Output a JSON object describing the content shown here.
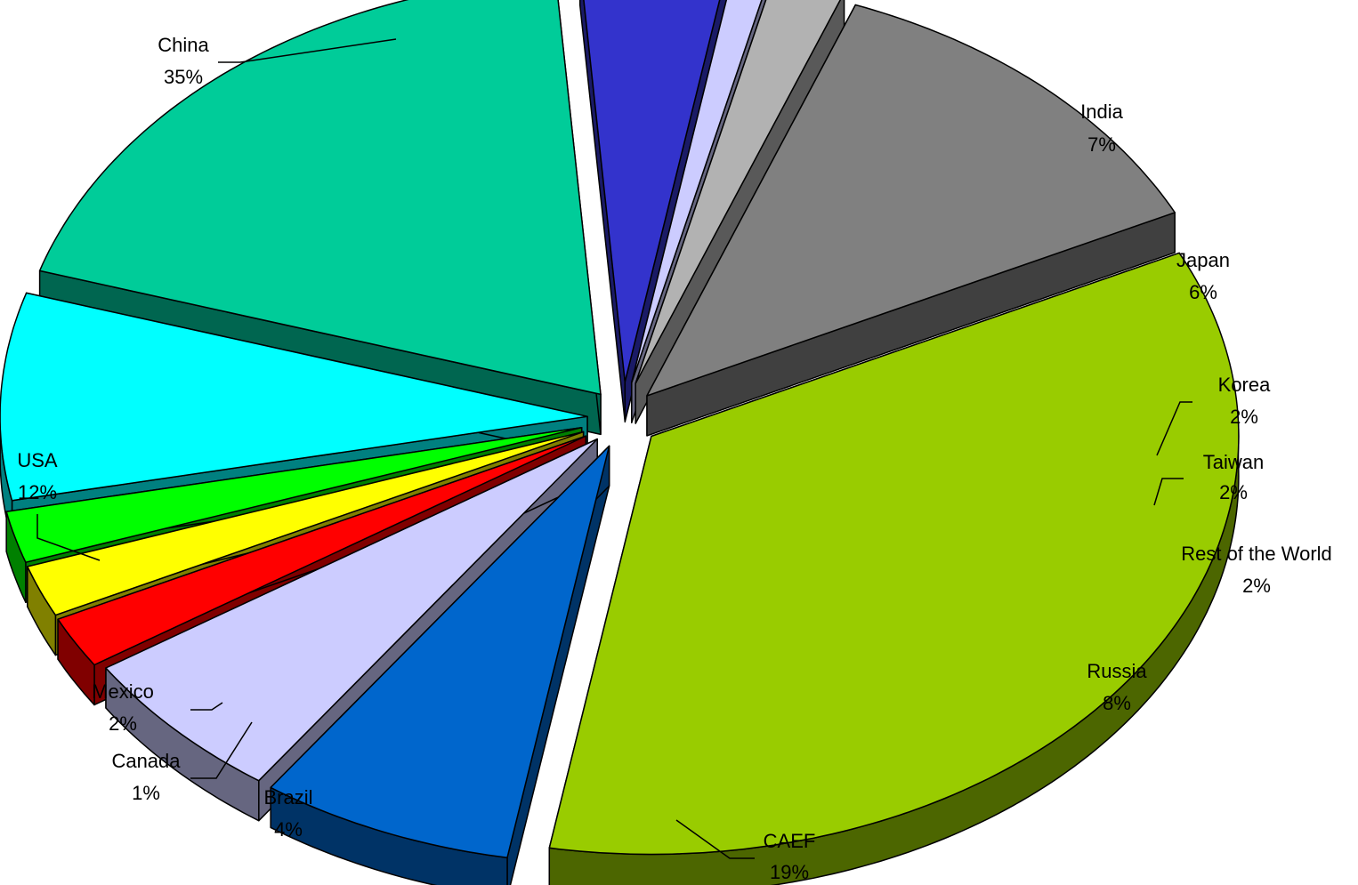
{
  "chart_data": {
    "type": "pie",
    "title": "",
    "style": "3d-exploded",
    "legend": "none",
    "slices": [
      {
        "label": "China",
        "value_label": "35%",
        "value": 35,
        "top_color": "#99cc00",
        "side_color": "#4c6600"
      },
      {
        "label": "India",
        "value_label": "7%",
        "value": 7,
        "top_color": "#0066cc",
        "side_color": "#003366"
      },
      {
        "label": "Japan",
        "value_label": "6%",
        "value": 6,
        "top_color": "#ccccff",
        "side_color": "#666680"
      },
      {
        "label": "Korea",
        "value_label": "2%",
        "value": 2,
        "top_color": "#ff0000",
        "side_color": "#800000"
      },
      {
        "label": "Taiwan",
        "value_label": "2%",
        "value": 2,
        "top_color": "#ffff00",
        "side_color": "#808000"
      },
      {
        "label": "Rest of the World",
        "value_label": "2%",
        "value": 2,
        "top_color": "#00ff00",
        "side_color": "#008000"
      },
      {
        "label": "Russia",
        "value_label": "8%",
        "value": 8,
        "top_color": "#00ffff",
        "side_color": "#008080"
      },
      {
        "label": "CAEF",
        "value_label": "19%",
        "value": 19,
        "top_color": "#00cc99",
        "side_color": "#006650"
      },
      {
        "label": "Brazil",
        "value_label": "4%",
        "value": 4,
        "top_color": "#3333cc",
        "side_color": "#1a1a66"
      },
      {
        "label": "Canada",
        "value_label": "1%",
        "value": 1,
        "top_color": "#ccccff",
        "side_color": "#666680"
      },
      {
        "label": "Mexico",
        "value_label": "2%",
        "value": 2,
        "top_color": "#b2b2b2",
        "side_color": "#595959"
      },
      {
        "label": "USA",
        "value_label": "12%",
        "value": 12,
        "top_color": "#808080",
        "side_color": "#404040"
      }
    ]
  }
}
